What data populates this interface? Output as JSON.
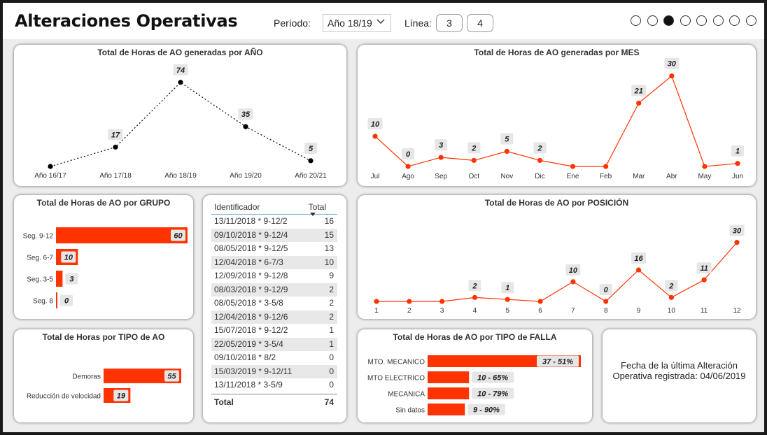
{
  "header": {
    "title": "Alteraciones Operativas",
    "period_label": "Período:",
    "period_value": "Año 18/19",
    "line_label": "Línea:",
    "line_options": [
      "3",
      "4"
    ],
    "page_dots": 8,
    "active_page": 3
  },
  "colors": {
    "accent": "#ff3300",
    "black_series": "#000000"
  },
  "chart_data": [
    {
      "type": "line",
      "title": "Total de Horas de AO generadas por AÑO",
      "categories": [
        "Año 16/17",
        "Año 17/18",
        "Año 18/19",
        "Año 19/20",
        "Año 20/21"
      ],
      "values": [
        null,
        17,
        74,
        35,
        5
      ],
      "data_labels": [
        "",
        "17",
        "74",
        "35",
        "5"
      ],
      "ylim": [
        0,
        80
      ],
      "grid": false
    },
    {
      "type": "line",
      "title": "Total de Horas de AO generadas por MES",
      "categories": [
        "Jul",
        "Ago",
        "Sep",
        "Oct",
        "Nov",
        "Dic",
        "Ene",
        "Feb",
        "Mar",
        "Abr",
        "May",
        "Jun"
      ],
      "values": [
        10,
        0,
        3,
        2,
        5,
        2,
        null,
        null,
        21,
        30,
        null,
        1
      ],
      "data_labels": [
        "10",
        "0",
        "3",
        "2",
        "5",
        "2",
        "",
        "",
        "21",
        "30",
        "",
        "1"
      ],
      "ylim": [
        0,
        32
      ],
      "grid": false
    },
    {
      "type": "bar",
      "orientation": "horizontal",
      "title": "Total de Horas de AO por GRUPO",
      "categories": [
        "Seg. 9-12",
        "Seg. 6-7",
        "Seg. 3-5",
        "Seg. 8"
      ],
      "values": [
        60,
        10,
        3,
        0
      ],
      "data_labels": [
        "60",
        "10",
        "3",
        "0"
      ],
      "xlim": [
        0,
        60
      ]
    },
    {
      "type": "line",
      "title": "Total de Horas de AO por POSICIÓN",
      "categories": [
        "1",
        "2",
        "3",
        "4",
        "5",
        "6",
        "7",
        "8",
        "9",
        "10",
        "11",
        "12"
      ],
      "values": [
        null,
        null,
        null,
        2,
        1,
        null,
        10,
        0,
        16,
        2,
        11,
        30
      ],
      "data_labels": [
        "",
        "",
        "",
        "2",
        "1",
        "",
        "10",
        "0",
        "16",
        "2",
        "11",
        "30"
      ],
      "ylim": [
        0,
        32
      ],
      "grid": false
    },
    {
      "type": "bar",
      "orientation": "horizontal",
      "title": "Total de Horas por TIPO de AO",
      "categories": [
        "Demoras",
        "Reducción de velocidad"
      ],
      "values": [
        55,
        19
      ],
      "data_labels": [
        "55",
        "19"
      ],
      "xlim": [
        0,
        55
      ]
    },
    {
      "type": "bar",
      "orientation": "horizontal",
      "title": "Total de Horas de AO por TIPO de FALLA",
      "categories": [
        "MTO. MECANICO",
        "MTO ELECTRICO",
        "MECANICA",
        "Sin datos"
      ],
      "values": [
        37,
        10,
        10,
        9
      ],
      "data_labels": [
        "37 - 51%",
        "10 - 65%",
        "10 - 79%",
        "9 - 90%"
      ],
      "xlim": [
        0,
        37
      ]
    }
  ],
  "table": {
    "headers": [
      "Identificador",
      "Total"
    ],
    "rows": [
      [
        "13/11/2018 * 9-12/2",
        "16"
      ],
      [
        "09/10/2018 * 9-12/4",
        "15"
      ],
      [
        "08/05/2018 * 9-12/5",
        "13"
      ],
      [
        "12/04/2018 * 6-7/3",
        "10"
      ],
      [
        "12/09/2018 * 9-12/8",
        "9"
      ],
      [
        "08/03/2018 * 9-12/9",
        "2"
      ],
      [
        "08/05/2018 * 3-5/8",
        "2"
      ],
      [
        "12/04/2018 * 9-12/6",
        "2"
      ],
      [
        "15/07/2018 * 9-12/2",
        "1"
      ],
      [
        "22/05/2019 * 3-5/4",
        "1"
      ],
      [
        "09/10/2018 * 8/2",
        "0"
      ],
      [
        "15/03/2019 * 9-12/11",
        "0"
      ],
      [
        "13/11/2018 * 3-5/9",
        "0"
      ]
    ],
    "total_label": "Total",
    "total_value": "74"
  },
  "last_update": {
    "line1": "Fecha de la última Alteración",
    "line2": "Operativa registrada: 04/06/2019"
  }
}
